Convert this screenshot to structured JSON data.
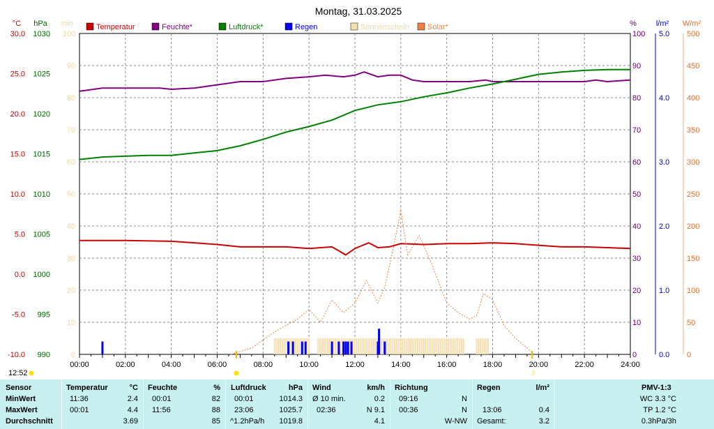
{
  "chart_data": {
    "type": "line",
    "title": "Montag, 31.03.2025",
    "x_ticks": [
      "00:00",
      "02:00",
      "04:00",
      "06:00",
      "08:00",
      "10:00",
      "12:00",
      "14:00",
      "16:00",
      "18:00",
      "20:00",
      "22:00",
      "24:00"
    ],
    "xlim": [
      0,
      24
    ],
    "x_unit": "h",
    "axes": {
      "temp": {
        "unit": "°C",
        "range": [
          -10,
          30
        ],
        "ticks": [
          "30.0",
          "25.0",
          "20.0",
          "15.0",
          "10.0",
          "5.0",
          "0.0",
          "-5.0",
          "-10.0"
        ],
        "color": "#cc0000"
      },
      "pressure": {
        "unit": "hPa",
        "range": [
          990,
          1030
        ],
        "ticks": [
          "1030",
          "1025",
          "1020",
          "1015",
          "1010",
          "1005",
          "1000",
          "995",
          "990"
        ],
        "color": "#006600"
      },
      "sunshine": {
        "unit": "min",
        "range": [
          0,
          100
        ],
        "ticks": [
          "100",
          "90",
          "80",
          "70",
          "60",
          "50",
          "40",
          "30",
          "20",
          "10",
          "0"
        ],
        "color": "#f0d8a0"
      },
      "humidity": {
        "unit": "%",
        "range": [
          0,
          100
        ],
        "ticks": [
          "100",
          "90",
          "80",
          "70",
          "60",
          "50",
          "40",
          "30",
          "20",
          "10",
          "0"
        ],
        "color": "#660066"
      },
      "rain": {
        "unit": "l/m²",
        "range": [
          0,
          5
        ],
        "ticks": [
          "5.0",
          "4.0",
          "3.0",
          "2.0",
          "1.0",
          "0.0"
        ],
        "color": "#0000cc"
      },
      "solar": {
        "unit": "W/m²",
        "range": [
          0,
          500
        ],
        "ticks": [
          "500",
          "450",
          "400",
          "350",
          "300",
          "250",
          "200",
          "150",
          "100",
          "50",
          "0"
        ],
        "color": "#e07030"
      }
    },
    "legend": [
      {
        "name": "Temperatur",
        "color": "#cc0000"
      },
      {
        "name": "Feuchte*",
        "color": "#800080"
      },
      {
        "name": "Luftdruck*",
        "color": "#008000"
      },
      {
        "name": "Regen",
        "color": "#0000ff"
      },
      {
        "name": "Sonnenschein",
        "color": "#f5dfb0"
      },
      {
        "name": "Solar*",
        "color": "#f08040"
      }
    ],
    "series": [
      {
        "name": "Temperatur",
        "axis": "temp",
        "color": "#cc0000",
        "points": [
          [
            0,
            4.2
          ],
          [
            2,
            4.2
          ],
          [
            4,
            4.1
          ],
          [
            5,
            3.9
          ],
          [
            6,
            3.7
          ],
          [
            7,
            3.4
          ],
          [
            8,
            3.4
          ],
          [
            9,
            3.4
          ],
          [
            10,
            3.2
          ],
          [
            11,
            3.4
          ],
          [
            11.6,
            2.4
          ],
          [
            12,
            3.2
          ],
          [
            12.6,
            3.9
          ],
          [
            13,
            3.3
          ],
          [
            13.5,
            3.4
          ],
          [
            14,
            3.8
          ],
          [
            15,
            3.7
          ],
          [
            16,
            3.8
          ],
          [
            17,
            3.8
          ],
          [
            18,
            3.9
          ],
          [
            19,
            3.8
          ],
          [
            20,
            3.6
          ],
          [
            21,
            3.4
          ],
          [
            22,
            3.4
          ],
          [
            23,
            3.3
          ],
          [
            24,
            3.2
          ]
        ]
      },
      {
        "name": "Feuchte*",
        "axis": "humidity",
        "color": "#800080",
        "points": [
          [
            0,
            82
          ],
          [
            1,
            83
          ],
          [
            2,
            83
          ],
          [
            3.5,
            83
          ],
          [
            4,
            82.6
          ],
          [
            5,
            83
          ],
          [
            6,
            84
          ],
          [
            7,
            85
          ],
          [
            8,
            85
          ],
          [
            9,
            86
          ],
          [
            10,
            86.5
          ],
          [
            10.7,
            87
          ],
          [
            11.5,
            86.5
          ],
          [
            12,
            87
          ],
          [
            12.4,
            88
          ],
          [
            13,
            86.5
          ],
          [
            13.5,
            87
          ],
          [
            14,
            87
          ],
          [
            14.5,
            85.5
          ],
          [
            15,
            85
          ],
          [
            16,
            85
          ],
          [
            17,
            85
          ],
          [
            17.7,
            85.5
          ],
          [
            18,
            85
          ],
          [
            19,
            85
          ],
          [
            20,
            85
          ],
          [
            21,
            85
          ],
          [
            22,
            85
          ],
          [
            22.5,
            85.5
          ],
          [
            23,
            85
          ],
          [
            24,
            85.5
          ]
        ]
      },
      {
        "name": "Luftdruck*",
        "axis": "pressure",
        "color": "#008000",
        "points": [
          [
            0,
            1014.3
          ],
          [
            1,
            1014.6
          ],
          [
            2,
            1014.7
          ],
          [
            3,
            1014.8
          ],
          [
            4,
            1014.8
          ],
          [
            5,
            1015.1
          ],
          [
            6,
            1015.4
          ],
          [
            7,
            1016
          ],
          [
            8,
            1016.8
          ],
          [
            9,
            1017.7
          ],
          [
            10,
            1018.4
          ],
          [
            11,
            1019.2
          ],
          [
            12,
            1020.4
          ],
          [
            13,
            1021.1
          ],
          [
            14,
            1021.5
          ],
          [
            15,
            1022.1
          ],
          [
            16,
            1022.6
          ],
          [
            17,
            1023.2
          ],
          [
            18,
            1023.7
          ],
          [
            19,
            1024.3
          ],
          [
            20,
            1024.9
          ],
          [
            21,
            1025.2
          ],
          [
            22,
            1025.4
          ],
          [
            23,
            1025.5
          ],
          [
            24,
            1025.5
          ]
        ]
      },
      {
        "name": "Solar*",
        "axis": "solar",
        "color": "#f08040",
        "dashed": true,
        "points": [
          [
            6.6,
            0
          ],
          [
            7.5,
            10
          ],
          [
            8.5,
            35
          ],
          [
            9.5,
            55
          ],
          [
            10,
            70
          ],
          [
            10.5,
            50
          ],
          [
            11,
            85
          ],
          [
            11.5,
            65
          ],
          [
            12,
            80
          ],
          [
            12.5,
            115
          ],
          [
            13,
            80
          ],
          [
            13.3,
            105
          ],
          [
            13.7,
            170
          ],
          [
            14,
            225
          ],
          [
            14.3,
            155
          ],
          [
            14.8,
            185
          ],
          [
            15.3,
            145
          ],
          [
            16,
            80
          ],
          [
            16.5,
            65
          ],
          [
            17,
            55
          ],
          [
            17.3,
            60
          ],
          [
            17.6,
            95
          ],
          [
            18,
            85
          ],
          [
            18.5,
            45
          ],
          [
            19,
            25
          ],
          [
            19.5,
            10
          ],
          [
            19.8,
            0
          ]
        ]
      }
    ],
    "rain_bars": {
      "axis": "rain",
      "color": "#0000ff",
      "bars": [
        [
          1,
          0.2
        ],
        [
          9.1,
          0.2
        ],
        [
          9.3,
          0.2
        ],
        [
          9.7,
          0.2
        ],
        [
          9.85,
          0.2
        ],
        [
          11,
          0.2
        ],
        [
          11.3,
          0.2
        ],
        [
          11.5,
          0.2
        ],
        [
          11.6,
          0.2
        ],
        [
          11.7,
          0.2
        ],
        [
          11.85,
          0.2
        ],
        [
          13,
          0.2
        ],
        [
          13.05,
          0.4
        ],
        [
          13.3,
          0.2
        ]
      ]
    },
    "sunshine_bars": {
      "axis": "sunshine",
      "color": "#f5dfb0",
      "ranges": [
        [
          8.5,
          10.0,
          5
        ],
        [
          10.4,
          16.8,
          5
        ],
        [
          17.3,
          17.8,
          5
        ]
      ]
    },
    "markers": {
      "time_left": "12:52",
      "sunrise": "06:51",
      "sunset": "19:44"
    }
  },
  "table": {
    "headers": {
      "sensor": "Sensor",
      "temp": "Temperatur",
      "temp_unit": "°C",
      "hum": "Feuchte",
      "hum_unit": "%",
      "press": "Luftdruck",
      "press_unit": "hPa",
      "wind": "Wind",
      "wind_unit": "km/h",
      "dir": "Richtung",
      "rain": "Regen",
      "rain_unit": "l/m²",
      "pmv": "PMV-1:3"
    },
    "rows": {
      "min": {
        "label": "MinWert",
        "temp_time": "11:36",
        "temp_val": "2.4",
        "hum_time": "00:01",
        "hum_val": "82",
        "press_time": "00:01",
        "press_val": "1014.3",
        "wind_time": "Ø 10 min.",
        "wind_val": "0.2",
        "dir_time": "09:16",
        "dir_val": "N",
        "rain_time": "",
        "rain_val": "",
        "pmv": "WC 3.3 °C"
      },
      "max": {
        "label": "MaxWert",
        "temp_time": "00:01",
        "temp_val": "4.4",
        "hum_time": "11:56",
        "hum_val": "88",
        "press_time": "23:06",
        "press_val": "1025.7",
        "wind_time": "02:36",
        "wind_val": "N 9.1",
        "dir_time": "00:36",
        "dir_val": "N",
        "rain_time": "13:06",
        "rain_val": "0.4",
        "pmv": "TP 1.2 °C"
      },
      "avg": {
        "label": "Durchschnitt",
        "temp_time": "",
        "temp_val": "3.69",
        "hum_time": "",
        "hum_val": "85",
        "press_time": "^1.2hPa/h",
        "press_val": "1019.8",
        "wind_time": "",
        "wind_val": "4.1",
        "dir_time": "",
        "dir_val": "W-NW",
        "rain_time": "Gesamt:",
        "rain_val": "3.2",
        "pmv": "0.3hPa/3h"
      }
    }
  }
}
